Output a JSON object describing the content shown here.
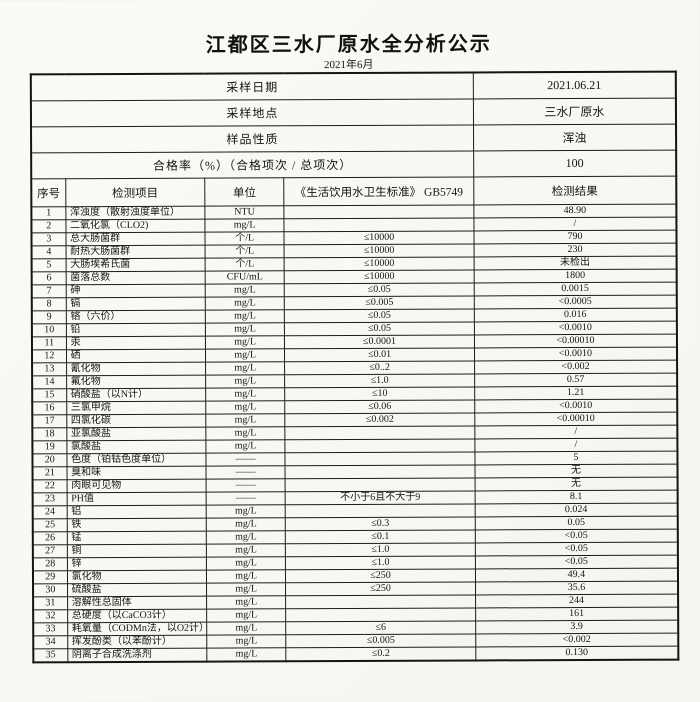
{
  "page": {
    "title": "江都区三水厂原水全分析公示",
    "subtitle": "2021年6月"
  },
  "info": {
    "rows": [
      {
        "label": "采样日期",
        "value": "2021.06.21"
      },
      {
        "label": "采样地点",
        "value": "三水厂原水"
      },
      {
        "label": "样品性质",
        "value": "浑浊"
      },
      {
        "label": "合格率（%）（合格项次 / 总项次）",
        "value": "100"
      }
    ]
  },
  "table": {
    "headers": [
      "序号",
      "检测项目",
      "单位",
      "《生活饮用水卫生标准》 GB5749",
      "检测结果"
    ],
    "rows": [
      [
        "1",
        "浑浊度（散射浊度单位）",
        "NTU",
        "",
        "48.90"
      ],
      [
        "2",
        "二氧化氯（CLO2)",
        "mg/L",
        "",
        "/"
      ],
      [
        "3",
        "总大肠菌群",
        "个/L",
        "≤10000",
        "790"
      ],
      [
        "4",
        "耐热大肠菌群",
        "个/L",
        "≤10000",
        "230"
      ],
      [
        "5",
        "大肠埃希氏菌",
        "个/L",
        "≤10000",
        "未检出"
      ],
      [
        "6",
        "菌落总数",
        "CFU/mL",
        "≤10000",
        "1800"
      ],
      [
        "7",
        "砷",
        "mg/L",
        "≤0.05",
        "0.0015"
      ],
      [
        "8",
        "镉",
        "mg/L",
        "≤0.005",
        "<0.0005"
      ],
      [
        "9",
        "铬（六价）",
        "mg/L",
        "≤0.05",
        "0.016"
      ],
      [
        "10",
        "铅",
        "mg/L",
        "≤0.05",
        "<0.0010"
      ],
      [
        "11",
        "汞",
        "mg/L",
        "≤0.0001",
        "<0.00010"
      ],
      [
        "12",
        "硒",
        "mg/L",
        "≤0.01",
        "<0.0010"
      ],
      [
        "13",
        "氰化物",
        "mg/L",
        "≤0..2",
        "<0.002"
      ],
      [
        "14",
        "氟化物",
        "mg/L",
        "≤1.0",
        "0.57"
      ],
      [
        "15",
        "硝酸盐（以N计）",
        "mg/L",
        "≤10",
        "1.21"
      ],
      [
        "16",
        "三氯甲烷",
        "mg/L",
        "≤0.06",
        "<0.0010"
      ],
      [
        "17",
        "四氯化碳",
        "mg/L",
        "≤0.002",
        "<0.00010"
      ],
      [
        "18",
        "亚氯酸盐",
        "mg/L",
        "",
        "/"
      ],
      [
        "19",
        "氯酸盐",
        "mg/L",
        "",
        "/"
      ],
      [
        "20",
        "色度（铂钴色度单位）",
        "——",
        "",
        "5"
      ],
      [
        "21",
        "臭和味",
        "——",
        "",
        "无"
      ],
      [
        "22",
        "肉眼可见物",
        "——",
        "",
        "无"
      ],
      [
        "23",
        "PH值",
        "——",
        "不小于6且不大于9",
        "8.1"
      ],
      [
        "24",
        "铝",
        "mg/L",
        "",
        "0.024"
      ],
      [
        "25",
        "铁",
        "mg/L",
        "≤0.3",
        "0.05"
      ],
      [
        "26",
        "锰",
        "mg/L",
        "≤0.1",
        "<0.05"
      ],
      [
        "27",
        "铜",
        "mg/L",
        "≤1.0",
        "<0.05"
      ],
      [
        "28",
        "锌",
        "mg/L",
        "≤1.0",
        "<0.05"
      ],
      [
        "29",
        "氯化物",
        "mg/L",
        "≤250",
        "49.4"
      ],
      [
        "30",
        "硫酸盐",
        "mg/L",
        "≤250",
        "35.6"
      ],
      [
        "31",
        "溶解性总固体",
        "mg/L",
        "",
        "244"
      ],
      [
        "32",
        "总硬度（以CaCO3计）",
        "mg/L",
        "",
        "161"
      ],
      [
        "33",
        "耗氧量（CODMn法，以O2计）",
        "mg/L",
        "≤6",
        "3.9"
      ],
      [
        "34",
        "挥发酚类（以苯酚计）",
        "mg/L",
        "≤0.005",
        "<0.002"
      ],
      [
        "35",
        "阴离子合成洗涤剂",
        "mg/L",
        "≤0.2",
        "0.130"
      ]
    ]
  }
}
